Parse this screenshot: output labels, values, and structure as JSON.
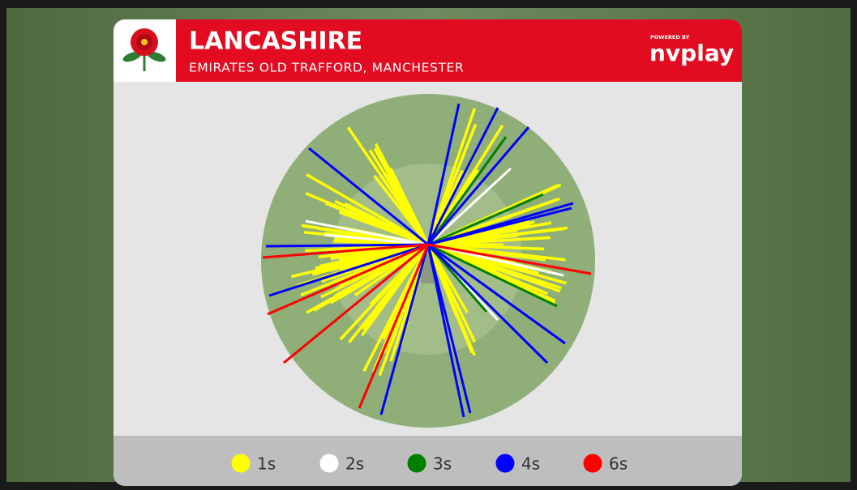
{
  "header": {
    "title": "LANCASHIRE",
    "subtitle": "EMIRATES OLD TRAFFORD, MANCHESTER",
    "powered_by": "POWERED BY",
    "brand": "nvplay"
  },
  "legend": [
    {
      "label": "1s",
      "color": "#ffff00"
    },
    {
      "label": "2s",
      "color": "#ffffff"
    },
    {
      "label": "3s",
      "color": "#008000"
    },
    {
      "label": "4s",
      "color": "#0000ff"
    },
    {
      "label": "6s",
      "color": "#ff0000"
    }
  ]
}
